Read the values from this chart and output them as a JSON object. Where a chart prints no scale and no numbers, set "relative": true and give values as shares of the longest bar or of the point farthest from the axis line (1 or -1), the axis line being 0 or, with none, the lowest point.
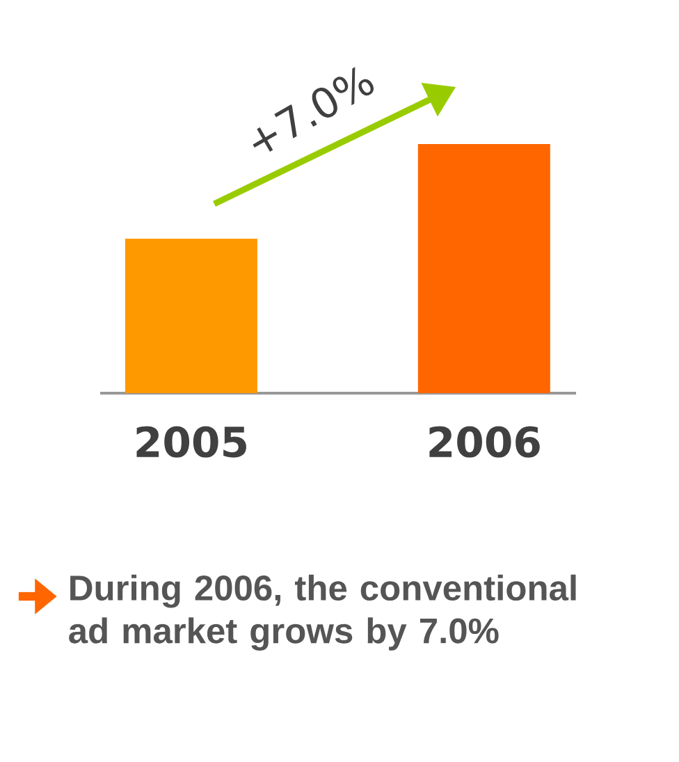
{
  "chart_data": {
    "type": "bar",
    "relative": true,
    "categories": [
      "2005",
      "2006"
    ],
    "values": [
      0.62,
      1
    ],
    "colors": [
      "#ff9900",
      "#ff6600"
    ],
    "annotations": [
      "+7.0%",
      "During 2006, the conventional ad market grows by 7.0%"
    ]
  }
}
